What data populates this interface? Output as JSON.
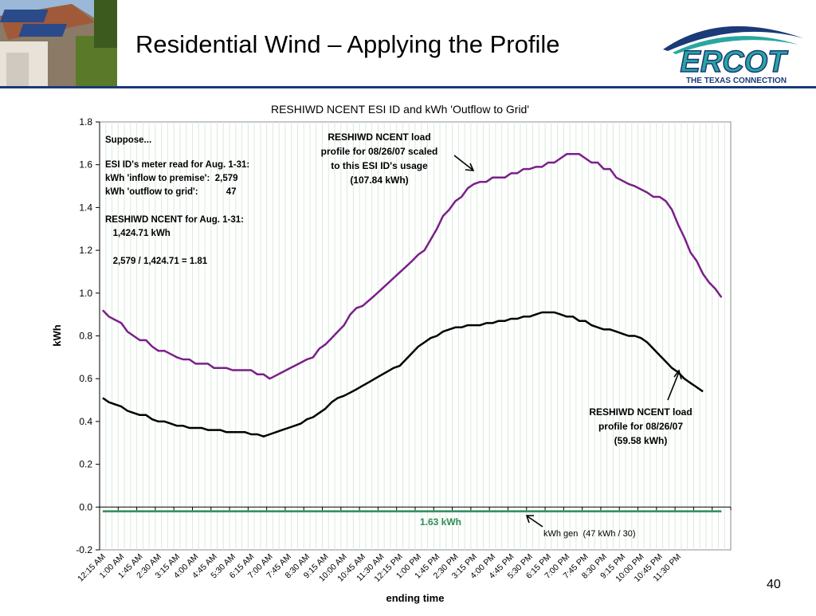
{
  "slide": {
    "title": "Residential Wind – Applying the Profile",
    "page_number": "40",
    "logo_text": "ERCOT",
    "logo_tagline": "THE TEXAS CONNECTION"
  },
  "colors": {
    "scaled_series": "#7b1f8a",
    "load_series": "#000000",
    "gen_series": "#2e8b57",
    "gen_label": "#2e8b57",
    "plot_grid": "#d9ecd9",
    "logo_blue": "#1a3a78",
    "logo_teal": "#2aa6a0"
  },
  "annotations": {
    "suppose_lines": [
      "Suppose...",
      "ESI ID's meter read for Aug. 1-31:",
      "kWh 'inflow to premise':  2,579",
      "kWh 'outflow to grid':           47",
      "RESHIWD NCENT for Aug. 1-31:",
      "   1,424.71 kWh",
      "   2,579 / 1,424.71 = 1.81"
    ],
    "scaled_label": [
      "RESHIWD NCENT load",
      "profile for 08/26/07 scaled",
      "to this ESI ID's usage",
      "(107.84 kWh)"
    ],
    "load_label": [
      "RESHIWD NCENT load",
      "profile for 08/26/07",
      "(59.58 kWh)"
    ],
    "gen_value_label": "1.63 kWh",
    "gen_label": "kWh gen  (47 kWh / 30)"
  },
  "chart_data": {
    "type": "line",
    "title": "RESHIWD NCENT ESI ID and kWh 'Outflow to Grid'",
    "xlabel": "ending time",
    "ylabel": "kWh",
    "ylim": [
      -0.2,
      1.8
    ],
    "yticks": [
      "1.8",
      "1.6",
      "1.4",
      "1.2",
      "1.0",
      "0.8",
      "0.6",
      "0.4",
      "0.2",
      "0.0",
      "-0.2"
    ],
    "grid": true,
    "x_tick_labels": [
      "12:15 AM",
      "1:00 AM",
      "1:45 AM",
      "2:30 AM",
      "3:15 AM",
      "4:00 AM",
      "4:45 AM",
      "5:30 AM",
      "6:15 AM",
      "7:00 AM",
      "7:45 AM",
      "8:30 AM",
      "9:15 AM",
      "10:00 AM",
      "10:45 AM",
      "11:30 AM",
      "12:15 PM",
      "1:00 PM",
      "1:45 PM",
      "2:30 PM",
      "3:15 PM",
      "4:00 PM",
      "4:45 PM",
      "5:30 PM",
      "6:15 PM",
      "7:00 PM",
      "7:45 PM",
      "8:30 PM",
      "9:15 PM",
      "10:00 PM",
      "10:45 PM",
      "11:30 PM"
    ],
    "interval_count": 96,
    "series": [
      {
        "key": "scaled",
        "anchors": [
          [
            1,
            0.92
          ],
          [
            2,
            0.89
          ],
          [
            4,
            0.86
          ],
          [
            5,
            0.82
          ],
          [
            7,
            0.78
          ],
          [
            8,
            0.78
          ],
          [
            9,
            0.75
          ],
          [
            10,
            0.73
          ],
          [
            11,
            0.73
          ],
          [
            13,
            0.7
          ],
          [
            14,
            0.69
          ],
          [
            15,
            0.69
          ],
          [
            16,
            0.67
          ],
          [
            18,
            0.67
          ],
          [
            19,
            0.65
          ],
          [
            21,
            0.65
          ],
          [
            22,
            0.64
          ],
          [
            25,
            0.64
          ],
          [
            26,
            0.62
          ],
          [
            27,
            0.62
          ],
          [
            28,
            0.6
          ],
          [
            30,
            0.63
          ],
          [
            32,
            0.66
          ],
          [
            34,
            0.69
          ],
          [
            35,
            0.7
          ],
          [
            36,
            0.74
          ],
          [
            37,
            0.76
          ],
          [
            39,
            0.82
          ],
          [
            40,
            0.85
          ],
          [
            41,
            0.9
          ],
          [
            42,
            0.93
          ],
          [
            43,
            0.94
          ],
          [
            45,
            0.99
          ],
          [
            48,
            1.07
          ],
          [
            51,
            1.15
          ],
          [
            52,
            1.18
          ],
          [
            53,
            1.2
          ],
          [
            54,
            1.25
          ],
          [
            55,
            1.3
          ],
          [
            56,
            1.36
          ],
          [
            57,
            1.39
          ],
          [
            58,
            1.43
          ],
          [
            59,
            1.45
          ],
          [
            60,
            1.49
          ],
          [
            61,
            1.51
          ],
          [
            62,
            1.52
          ],
          [
            63,
            1.52
          ],
          [
            64,
            1.54
          ],
          [
            66,
            1.54
          ],
          [
            67,
            1.56
          ],
          [
            68,
            1.56
          ],
          [
            69,
            1.58
          ],
          [
            70,
            1.58
          ],
          [
            71,
            1.59
          ],
          [
            72,
            1.59
          ],
          [
            73,
            1.61
          ],
          [
            74,
            1.61
          ],
          [
            75,
            1.63
          ],
          [
            76,
            1.65
          ],
          [
            78,
            1.65
          ],
          [
            79,
            1.63
          ],
          [
            80,
            1.61
          ],
          [
            81,
            1.61
          ],
          [
            82,
            1.58
          ],
          [
            83,
            1.58
          ],
          [
            84,
            1.54
          ],
          [
            86,
            1.51
          ],
          [
            87,
            1.5
          ],
          [
            89,
            1.47
          ],
          [
            90,
            1.45
          ],
          [
            91,
            1.45
          ],
          [
            92,
            1.43
          ],
          [
            93,
            1.39
          ],
          [
            94,
            1.32
          ],
          [
            95,
            1.26
          ],
          [
            96,
            1.19
          ]
        ],
        "extra_tail": [
          [
            97,
            1.15
          ],
          [
            98,
            1.09
          ],
          [
            99,
            1.05
          ],
          [
            100,
            1.02
          ],
          [
            101,
            0.98
          ]
        ]
      },
      {
        "key": "load",
        "anchors": [
          [
            1,
            0.51
          ],
          [
            2,
            0.49
          ],
          [
            4,
            0.47
          ],
          [
            5,
            0.45
          ],
          [
            7,
            0.43
          ],
          [
            8,
            0.43
          ],
          [
            9,
            0.41
          ],
          [
            10,
            0.4
          ],
          [
            11,
            0.4
          ],
          [
            13,
            0.38
          ],
          [
            14,
            0.38
          ],
          [
            15,
            0.37
          ],
          [
            17,
            0.37
          ],
          [
            18,
            0.36
          ],
          [
            20,
            0.36
          ],
          [
            21,
            0.35
          ],
          [
            24,
            0.35
          ],
          [
            25,
            0.34
          ],
          [
            26,
            0.34
          ],
          [
            27,
            0.33
          ],
          [
            29,
            0.35
          ],
          [
            31,
            0.37
          ],
          [
            33,
            0.39
          ],
          [
            34,
            0.41
          ],
          [
            35,
            0.42
          ],
          [
            37,
            0.46
          ],
          [
            38,
            0.49
          ],
          [
            39,
            0.51
          ],
          [
            40,
            0.52
          ],
          [
            42,
            0.55
          ],
          [
            45,
            0.6
          ],
          [
            48,
            0.65
          ],
          [
            49,
            0.66
          ],
          [
            50,
            0.69
          ],
          [
            51,
            0.72
          ],
          [
            52,
            0.75
          ],
          [
            53,
            0.77
          ],
          [
            54,
            0.79
          ],
          [
            55,
            0.8
          ],
          [
            56,
            0.82
          ],
          [
            57,
            0.83
          ],
          [
            58,
            0.84
          ],
          [
            59,
            0.84
          ],
          [
            60,
            0.85
          ],
          [
            62,
            0.85
          ],
          [
            63,
            0.86
          ],
          [
            64,
            0.86
          ],
          [
            65,
            0.87
          ],
          [
            66,
            0.87
          ],
          [
            67,
            0.88
          ],
          [
            68,
            0.88
          ],
          [
            69,
            0.89
          ],
          [
            70,
            0.89
          ],
          [
            71,
            0.9
          ],
          [
            72,
            0.91
          ],
          [
            74,
            0.91
          ],
          [
            75,
            0.9
          ],
          [
            76,
            0.89
          ],
          [
            77,
            0.89
          ],
          [
            78,
            0.87
          ],
          [
            79,
            0.87
          ],
          [
            80,
            0.85
          ],
          [
            82,
            0.83
          ],
          [
            83,
            0.83
          ],
          [
            85,
            0.81
          ],
          [
            86,
            0.8
          ],
          [
            87,
            0.8
          ],
          [
            88,
            0.79
          ],
          [
            89,
            0.77
          ],
          [
            90,
            0.74
          ],
          [
            91,
            0.71
          ],
          [
            92,
            0.68
          ],
          [
            93,
            0.65
          ],
          [
            94,
            0.63
          ],
          [
            95,
            0.6
          ],
          [
            96,
            0.58
          ]
        ],
        "extra_tail": [
          [
            97,
            0.56
          ],
          [
            98,
            0.54
          ]
        ]
      },
      {
        "key": "gen",
        "constant": -0.02
      }
    ]
  }
}
